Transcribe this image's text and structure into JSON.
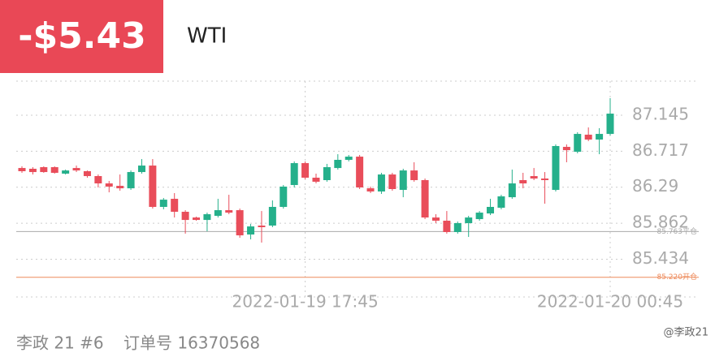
{
  "header": {
    "pnl": "-$5.43",
    "symbol": "WTI"
  },
  "chart_data": {
    "type": "candlestick",
    "categories": [
      null,
      null,
      null,
      null,
      null,
      null,
      null,
      null,
      null,
      null,
      null,
      null,
      null,
      null,
      null,
      null,
      null,
      null,
      null,
      null,
      null,
      null,
      null,
      null,
      null,
      null,
      "2022-01-19 17:45",
      null,
      null,
      null,
      null,
      null,
      null,
      null,
      null,
      null,
      null,
      null,
      null,
      null,
      null,
      null,
      null,
      null,
      null,
      null,
      null,
      null,
      null,
      null,
      null,
      null,
      null,
      null,
      "2022-01-20 00:45"
    ],
    "open": [
      86.518,
      86.509,
      86.528,
      86.528,
      86.451,
      86.518,
      86.48,
      86.422,
      86.335,
      86.306,
      86.277,
      86.47,
      86.547,
      86.056,
      86.152,
      85.998,
      85.93,
      85.901,
      85.95,
      86.017,
      86.017,
      85.728,
      85.834,
      85.834,
      86.056,
      86.316,
      86.576,
      86.403,
      86.374,
      86.518,
      86.615,
      86.653,
      86.277,
      86.239,
      86.441,
      86.258,
      86.489,
      86.374,
      85.93,
      85.892,
      85.757,
      85.863,
      85.911,
      85.978,
      86.046,
      86.171,
      86.374,
      86.422,
      86.393,
      86.258,
      86.769,
      86.711,
      86.914,
      86.856,
      86.923
    ],
    "high": [
      86.538,
      86.528,
      86.538,
      86.538,
      86.499,
      86.547,
      86.489,
      86.441,
      86.364,
      86.441,
      86.489,
      86.624,
      86.624,
      86.162,
      86.22,
      86.017,
      85.94,
      85.988,
      86.152,
      86.2,
      86.036,
      85.853,
      86.007,
      86.133,
      86.316,
      86.596,
      86.596,
      86.451,
      86.567,
      86.682,
      86.673,
      86.673,
      86.297,
      86.461,
      86.461,
      86.509,
      86.586,
      86.393,
      85.969,
      86.007,
      85.882,
      85.95,
      86.007,
      86.152,
      86.2,
      86.499,
      86.461,
      86.518,
      86.47,
      86.798,
      86.798,
      86.943,
      87.0,
      86.991,
      87.347
    ],
    "low": [
      86.461,
      86.441,
      86.461,
      86.451,
      86.441,
      86.47,
      86.403,
      86.287,
      86.229,
      86.248,
      86.258,
      86.451,
      86.036,
      86.027,
      85.93,
      85.738,
      85.892,
      85.766,
      85.93,
      85.969,
      85.689,
      85.67,
      85.632,
      85.815,
      86.036,
      86.287,
      86.384,
      86.335,
      86.355,
      86.499,
      86.596,
      86.268,
      86.22,
      86.21,
      86.248,
      86.171,
      86.355,
      85.911,
      85.863,
      85.738,
      85.738,
      85.699,
      85.892,
      85.959,
      86.027,
      86.152,
      86.277,
      86.374,
      86.094,
      86.239,
      86.586,
      86.692,
      86.837,
      86.682,
      86.904
    ],
    "close": [
      86.48,
      86.47,
      86.47,
      86.461,
      86.489,
      86.489,
      86.422,
      86.335,
      86.297,
      86.277,
      86.47,
      86.547,
      86.056,
      86.142,
      85.998,
      85.901,
      85.901,
      85.969,
      86.017,
      85.988,
      85.718,
      85.824,
      85.815,
      86.056,
      86.297,
      86.576,
      86.403,
      86.355,
      86.528,
      86.615,
      86.653,
      86.287,
      86.239,
      86.441,
      86.268,
      86.489,
      86.374,
      85.93,
      85.892,
      85.757,
      85.863,
      85.93,
      85.988,
      86.056,
      86.181,
      86.335,
      86.335,
      86.393,
      86.374,
      86.779,
      86.73,
      86.923,
      86.856,
      86.923,
      87.164
    ],
    "up_color": "#25b08b",
    "down_color": "#e94d5a",
    "ylim": [
      84.986,
      87.55
    ],
    "yticks": [
      85.434,
      85.862,
      86.29,
      86.717,
      87.145
    ],
    "grid": true,
    "ref_lines": [
      {
        "value": 85.763,
        "label": "85.763平仓",
        "color": "#aaaaaa"
      },
      {
        "value": 85.22,
        "label": "85.220开仓",
        "color": "#ee8a5a"
      }
    ]
  },
  "footer": {
    "account": "李政 21 #6",
    "order": "订单号 16370568",
    "watermark": "@李政21"
  }
}
